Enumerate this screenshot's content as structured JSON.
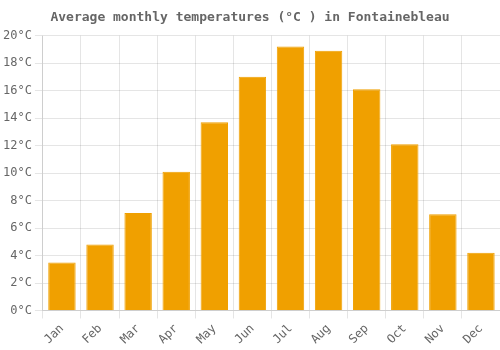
{
  "chart_data": {
    "type": "bar",
    "title": "Average monthly temperatures (°C ) in Fontainebleau",
    "categories": [
      "Jan",
      "Feb",
      "Mar",
      "Apr",
      "May",
      "Jun",
      "Jul",
      "Aug",
      "Sep",
      "Oct",
      "Nov",
      "Dec"
    ],
    "values": [
      3.5,
      4.8,
      7.1,
      10.1,
      13.7,
      17.0,
      19.2,
      18.9,
      16.1,
      12.1,
      7.0,
      4.2
    ],
    "color": "#F0A000",
    "ylim": [
      0,
      20
    ],
    "yticks": [
      {
        "value": 0,
        "label": "0°C"
      },
      {
        "value": 2,
        "label": "2°C"
      },
      {
        "value": 4,
        "label": "4°C"
      },
      {
        "value": 6,
        "label": "6°C"
      },
      {
        "value": 8,
        "label": "8°C"
      },
      {
        "value": 10,
        "label": "10°C"
      },
      {
        "value": 12,
        "label": "12°C"
      },
      {
        "value": 14,
        "label": "14°C"
      },
      {
        "value": 16,
        "label": "16°C"
      },
      {
        "value": 18,
        "label": "18°C"
      },
      {
        "value": 20,
        "label": "20°C"
      }
    ],
    "grid": true
  }
}
